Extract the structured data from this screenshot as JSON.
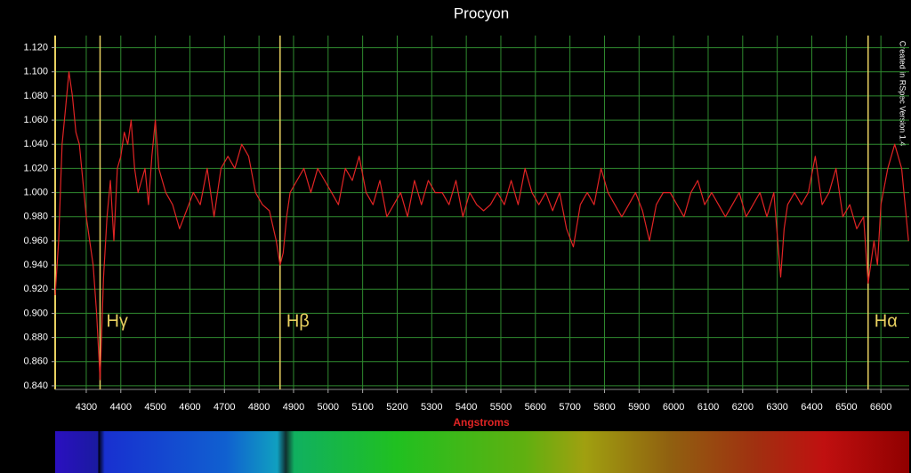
{
  "chart_data": {
    "type": "line",
    "title": "Procyon",
    "xlabel": "Angstroms",
    "note": "Created in RSpec Version 1.4",
    "color": "#e02424",
    "grid": true,
    "xlim": [
      4210,
      6682
    ],
    "ylim": [
      0.837,
      1.13
    ],
    "xticks": [
      4300,
      4400,
      4500,
      4600,
      4700,
      4800,
      4900,
      5000,
      5100,
      5200,
      5300,
      5400,
      5500,
      5600,
      5700,
      5800,
      5900,
      6000,
      6100,
      6200,
      6300,
      6400,
      6500,
      6600
    ],
    "yticks": [
      {
        "value": 0.84,
        "label": "0.840"
      },
      {
        "value": 0.86,
        "label": "0.860"
      },
      {
        "value": 0.88,
        "label": "0.880"
      },
      {
        "value": 0.9,
        "label": "0.900"
      },
      {
        "value": 0.92,
        "label": "0.920"
      },
      {
        "value": 0.94,
        "label": "0.940"
      },
      {
        "value": 0.96,
        "label": "0.960"
      },
      {
        "value": 0.98,
        "label": "0.980"
      },
      {
        "value": 1.0,
        "label": "1.000"
      },
      {
        "value": 1.02,
        "label": "1.020"
      },
      {
        "value": 1.04,
        "label": "1.040"
      },
      {
        "value": 1.06,
        "label": "1.060"
      },
      {
        "value": 1.08,
        "label": "1.080"
      },
      {
        "value": 1.1,
        "label": "1.100"
      },
      {
        "value": 1.12,
        "label": "1.120"
      }
    ],
    "lines": [
      {
        "x": 4340,
        "label": "Hγ"
      },
      {
        "x": 4861,
        "label": "Hβ"
      },
      {
        "x": 6563,
        "label": "Hα"
      }
    ],
    "x": [
      4210,
      4220,
      4230,
      4240,
      4250,
      4260,
      4270,
      4280,
      4290,
      4300,
      4310,
      4320,
      4330,
      4340,
      4350,
      4360,
      4370,
      4380,
      4390,
      4400,
      4410,
      4420,
      4430,
      4440,
      4450,
      4460,
      4470,
      4480,
      4490,
      4500,
      4510,
      4530,
      4550,
      4570,
      4590,
      4610,
      4630,
      4650,
      4670,
      4690,
      4710,
      4730,
      4750,
      4770,
      4790,
      4810,
      4830,
      4850,
      4861,
      4870,
      4880,
      4890,
      4910,
      4930,
      4950,
      4970,
      4990,
      5010,
      5030,
      5050,
      5070,
      5090,
      5110,
      5130,
      5150,
      5170,
      5190,
      5210,
      5230,
      5250,
      5270,
      5290,
      5310,
      5330,
      5350,
      5370,
      5390,
      5410,
      5430,
      5450,
      5470,
      5490,
      5510,
      5530,
      5550,
      5570,
      5590,
      5610,
      5630,
      5650,
      5670,
      5690,
      5710,
      5730,
      5750,
      5770,
      5790,
      5810,
      5830,
      5850,
      5870,
      5890,
      5910,
      5930,
      5950,
      5970,
      5990,
      6010,
      6030,
      6050,
      6070,
      6090,
      6110,
      6130,
      6150,
      6170,
      6190,
      6210,
      6230,
      6250,
      6270,
      6290,
      6310,
      6320,
      6330,
      6350,
      6370,
      6390,
      6410,
      6430,
      6450,
      6470,
      6490,
      6510,
      6530,
      6550,
      6563,
      6580,
      6590,
      6600,
      6620,
      6640,
      6660,
      6680
    ],
    "values": [
      0.915,
      0.96,
      1.04,
      1.07,
      1.1,
      1.08,
      1.05,
      1.04,
      1.01,
      0.98,
      0.96,
      0.94,
      0.9,
      0.845,
      0.93,
      0.98,
      1.01,
      0.96,
      1.02,
      1.03,
      1.05,
      1.04,
      1.06,
      1.02,
      1.0,
      1.01,
      1.02,
      0.99,
      1.03,
      1.06,
      1.02,
      1.0,
      0.99,
      0.97,
      0.985,
      1.0,
      0.99,
      1.02,
      0.98,
      1.02,
      1.03,
      1.02,
      1.04,
      1.03,
      1.0,
      0.99,
      0.985,
      0.96,
      0.94,
      0.95,
      0.98,
      1.0,
      1.01,
      1.02,
      1.0,
      1.02,
      1.01,
      1.0,
      0.99,
      1.02,
      1.01,
      1.03,
      1.0,
      0.99,
      1.01,
      0.98,
      0.99,
      1.0,
      0.98,
      1.01,
      0.99,
      1.01,
      1.0,
      1.0,
      0.99,
      1.01,
      0.98,
      1.0,
      0.99,
      0.985,
      0.99,
      1.0,
      0.99,
      1.01,
      0.99,
      1.02,
      1.0,
      0.99,
      1.0,
      0.985,
      1.0,
      0.97,
      0.955,
      0.99,
      1.0,
      0.99,
      1.02,
      1.0,
      0.99,
      0.98,
      0.99,
      1.0,
      0.985,
      0.96,
      0.99,
      1.0,
      1.0,
      0.99,
      0.98,
      1.0,
      1.01,
      0.99,
      1.0,
      0.99,
      0.98,
      0.99,
      1.0,
      0.98,
      0.99,
      1.0,
      0.98,
      1.0,
      0.93,
      0.97,
      0.99,
      1.0,
      0.99,
      1.0,
      1.03,
      0.99,
      1.0,
      1.02,
      0.98,
      0.99,
      0.97,
      0.98,
      0.925,
      0.96,
      0.94,
      0.99,
      1.02,
      1.04,
      1.02,
      0.96
    ]
  }
}
